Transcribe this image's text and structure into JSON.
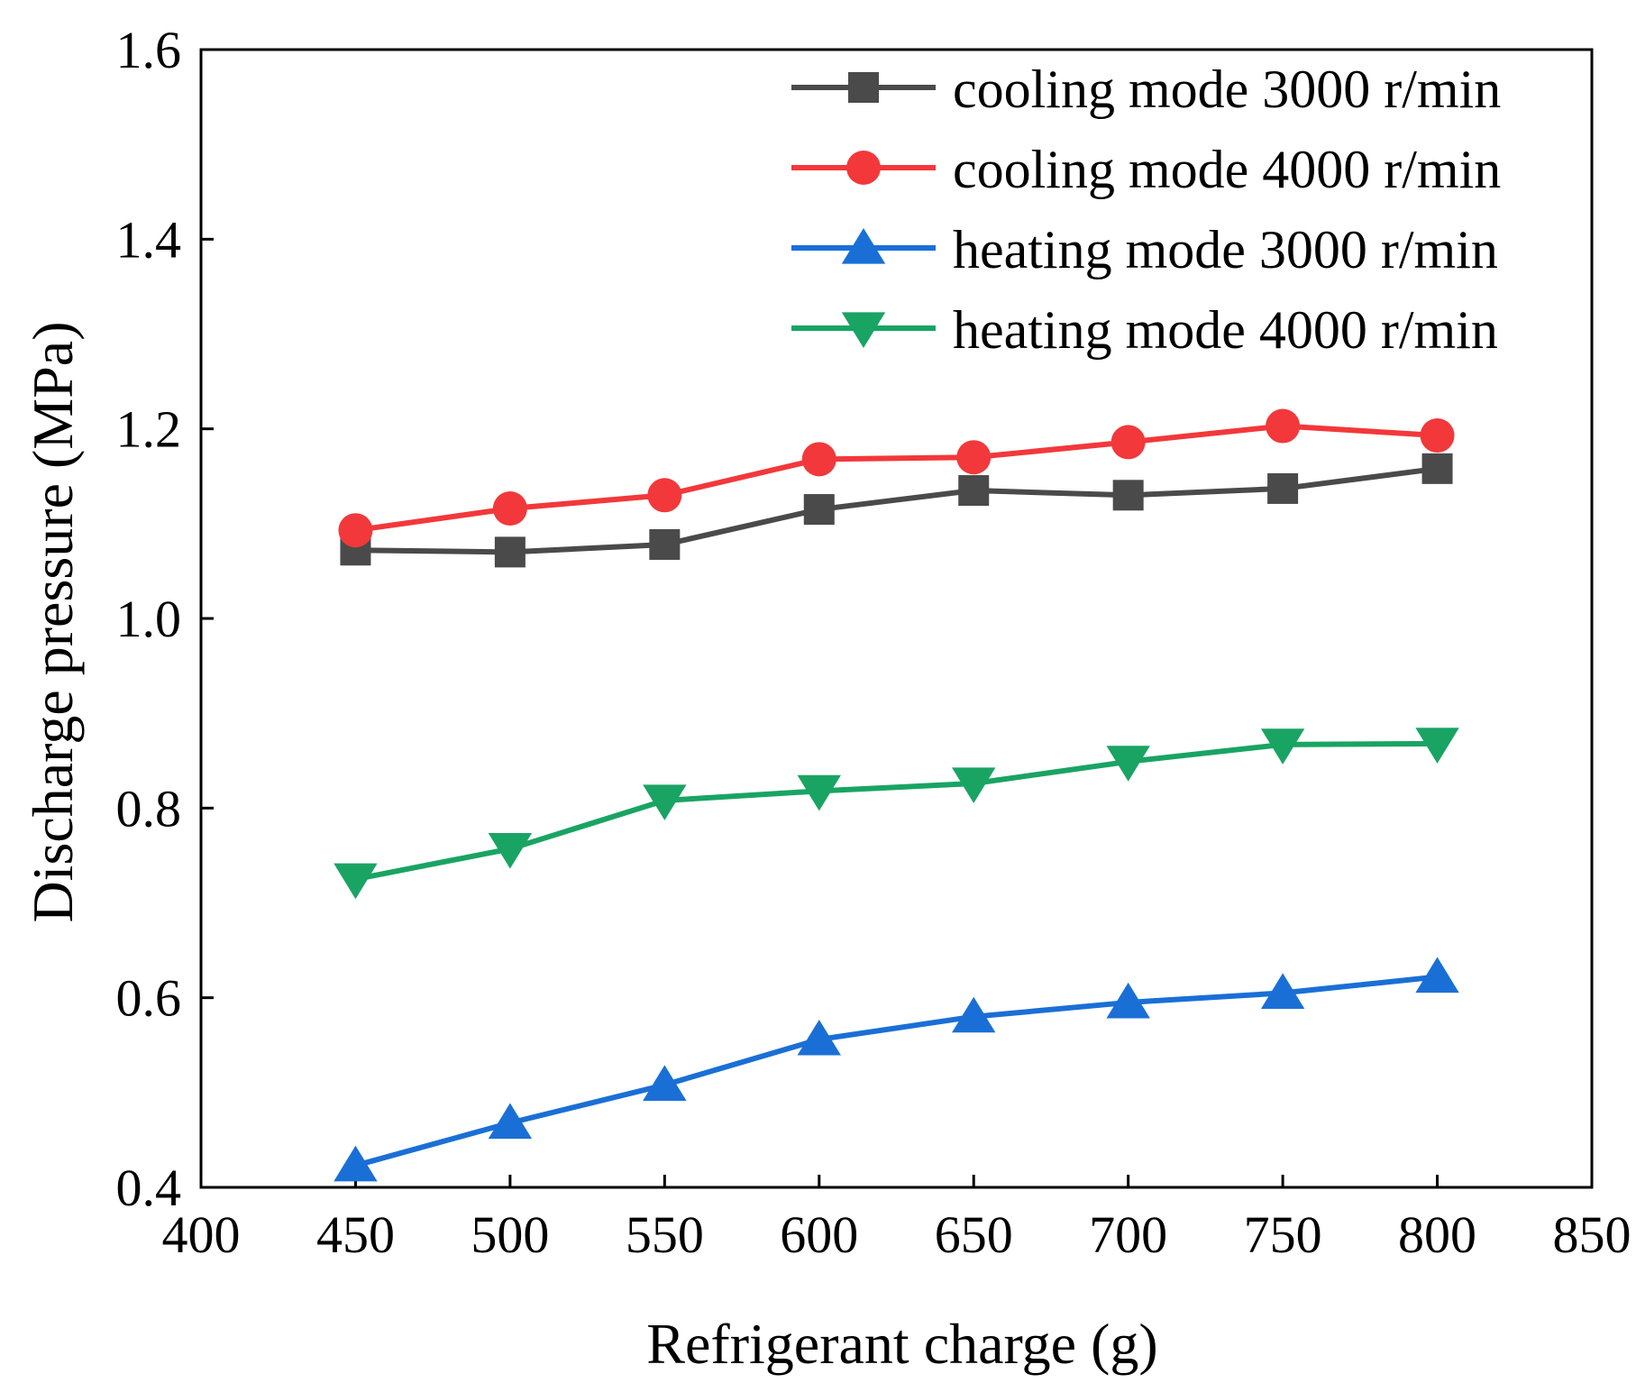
{
  "chart_data": {
    "type": "line",
    "title": "",
    "xlabel": "Refrigerant charge (g)",
    "ylabel": "Discharge pressure (MPa)",
    "xlim": [
      400,
      850
    ],
    "ylim": [
      0.4,
      1.6
    ],
    "x_ticks": [
      "400",
      "450",
      "500",
      "550",
      "600",
      "650",
      "700",
      "750",
      "800",
      "850"
    ],
    "y_ticks": [
      "0.4",
      "0.6",
      "0.8",
      "1.0",
      "1.2",
      "1.4",
      "1.6"
    ],
    "grid": false,
    "legend_position": "top-right",
    "x": [
      450,
      500,
      550,
      600,
      650,
      700,
      750,
      800
    ],
    "series": [
      {
        "name": "cooling mode 3000 r/min",
        "marker": "square",
        "color": "#4a4a4a",
        "values": [
          1.072,
          1.07,
          1.078,
          1.115,
          1.135,
          1.13,
          1.137,
          1.158
        ]
      },
      {
        "name": "cooling mode 4000 r/min",
        "marker": "circle",
        "color": "#f2383a",
        "values": [
          1.093,
          1.116,
          1.13,
          1.168,
          1.17,
          1.186,
          1.203,
          1.193
        ]
      },
      {
        "name": "heating mode 3000 r/min",
        "marker": "triangle-up",
        "color": "#1a6fd6",
        "values": [
          0.423,
          0.468,
          0.508,
          0.556,
          0.58,
          0.595,
          0.605,
          0.622
        ]
      },
      {
        "name": "heating mode 4000 r/min",
        "marker": "triangle-down",
        "color": "#19a463",
        "values": [
          0.725,
          0.757,
          0.808,
          0.818,
          0.826,
          0.849,
          0.867,
          0.868
        ]
      }
    ]
  }
}
